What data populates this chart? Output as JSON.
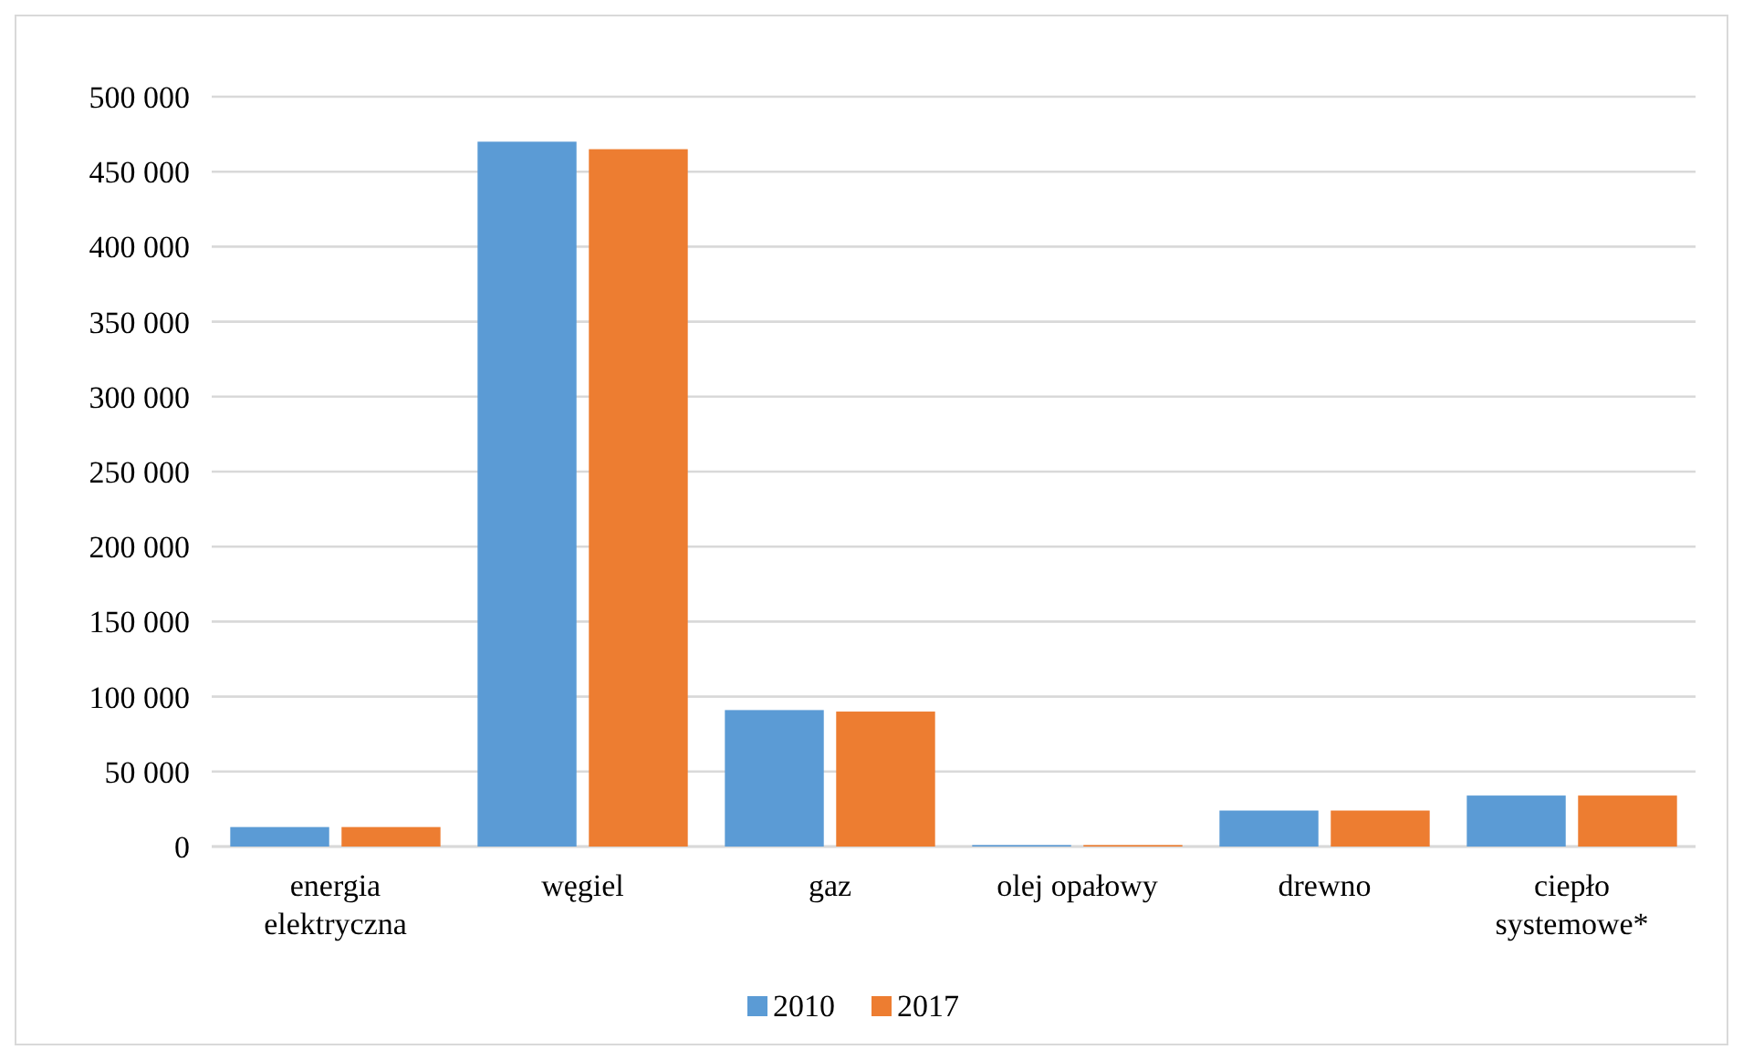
{
  "chart_data": {
    "type": "bar",
    "categories": [
      "energia elektryczna",
      "węgiel",
      "gaz",
      "olej opałowy",
      "drewno",
      "ciepło systemowe*"
    ],
    "series": [
      {
        "name": "2010",
        "color": "#5b9bd5",
        "values": [
          13000,
          470000,
          91000,
          1000,
          24000,
          34000
        ]
      },
      {
        "name": "2017",
        "color": "#ed7d31",
        "values": [
          13000,
          465000,
          90000,
          1000,
          24000,
          34000
        ]
      }
    ],
    "ylim": [
      0,
      500000
    ],
    "yticks": [
      {
        "value": 0,
        "label": "0"
      },
      {
        "value": 50000,
        "label": "50 000"
      },
      {
        "value": 100000,
        "label": "100 000"
      },
      {
        "value": 150000,
        "label": "150 000"
      },
      {
        "value": 200000,
        "label": "200 000"
      },
      {
        "value": 250000,
        "label": "250 000"
      },
      {
        "value": 300000,
        "label": "300 000"
      },
      {
        "value": 350000,
        "label": "350 000"
      },
      {
        "value": 400000,
        "label": "400 000"
      },
      {
        "value": 450000,
        "label": "450 000"
      },
      {
        "value": 500000,
        "label": "500 000"
      }
    ],
    "grid": "y",
    "legend": "bottom"
  }
}
